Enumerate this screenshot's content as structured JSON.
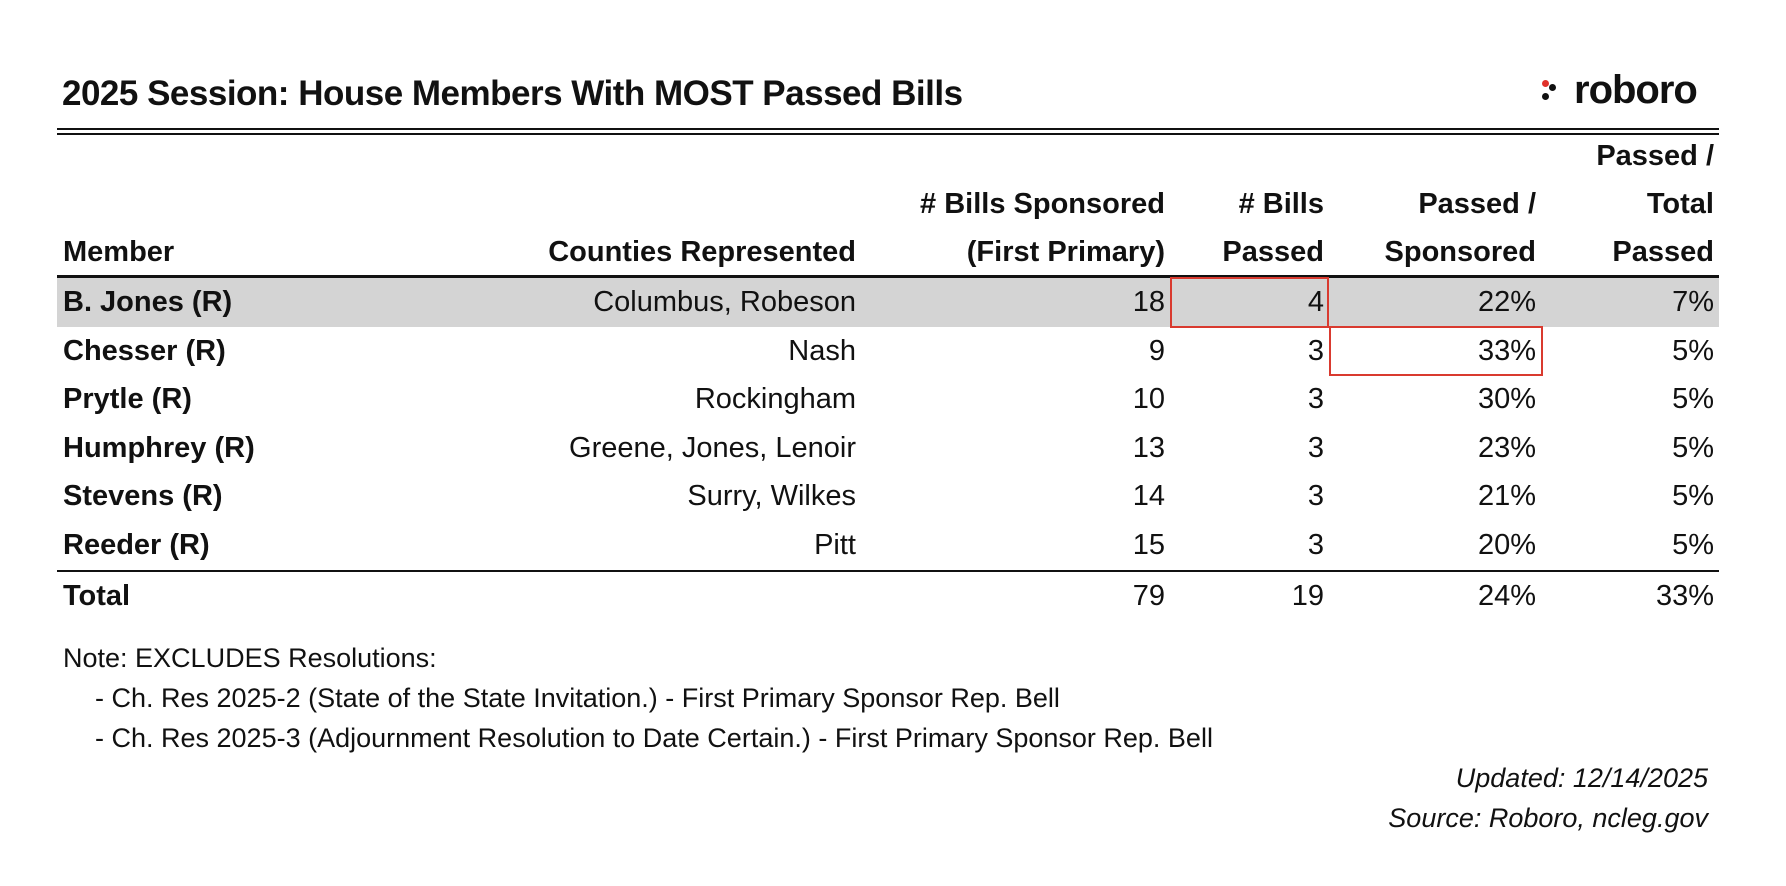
{
  "title": "2025 Session: House Members With MOST Passed Bills",
  "logo": {
    "text": "roboro",
    "icon": "dot-cluster-icon",
    "mark_colors": [
      "#e0312a",
      "#111111"
    ]
  },
  "colors": {
    "highlight_row": "#d4d4d4",
    "callout_box": "#d93a2f",
    "rule": "#111111"
  },
  "chart_data": {
    "type": "table",
    "title": "2025 Session: House Members With MOST Passed Bills",
    "columns": [
      {
        "key": "member",
        "lines": [
          "Member"
        ]
      },
      {
        "key": "counties",
        "lines": [
          "Counties Represented"
        ]
      },
      {
        "key": "sponsored",
        "lines": [
          "# Bills Sponsored",
          "(First Primary)"
        ]
      },
      {
        "key": "passed",
        "lines": [
          "# Bills",
          "Passed"
        ]
      },
      {
        "key": "passed_sponsored",
        "lines": [
          "Passed /",
          "Sponsored"
        ]
      },
      {
        "key": "passed_total",
        "lines": [
          "Passed /",
          "Total",
          "Passed"
        ]
      }
    ],
    "rows": [
      {
        "member": "B. Jones (R)",
        "counties": "Columbus, Robeson",
        "sponsored": "18",
        "passed": "4",
        "passed_sponsored": "22%",
        "passed_total": "7%"
      },
      {
        "member": "Chesser (R)",
        "counties": "Nash",
        "sponsored": "9",
        "passed": "3",
        "passed_sponsored": "33%",
        "passed_total": "5%"
      },
      {
        "member": "Prytle (R)",
        "counties": "Rockingham",
        "sponsored": "10",
        "passed": "3",
        "passed_sponsored": "30%",
        "passed_total": "5%"
      },
      {
        "member": "Humphrey (R)",
        "counties": "Greene, Jones, Lenoir",
        "sponsored": "13",
        "passed": "3",
        "passed_sponsored": "23%",
        "passed_total": "5%"
      },
      {
        "member": "Stevens (R)",
        "counties": "Surry, Wilkes",
        "sponsored": "14",
        "passed": "3",
        "passed_sponsored": "21%",
        "passed_total": "5%"
      },
      {
        "member": "Reeder (R)",
        "counties": "Pitt",
        "sponsored": "15",
        "passed": "3",
        "passed_sponsored": "20%",
        "passed_total": "5%"
      }
    ],
    "total": {
      "member": "Total",
      "counties": "",
      "sponsored": "79",
      "passed": "19",
      "passed_sponsored": "24%",
      "passed_total": "33%"
    },
    "highlighted_row": "B. Jones (R)",
    "callouts": [
      {
        "row": "B. Jones (R)",
        "column": "passed"
      },
      {
        "row": "Chesser (R)",
        "column": "passed_sponsored"
      }
    ]
  },
  "notes": {
    "heading": "Note: EXCLUDES Resolutions:",
    "items": [
      "- Ch. Res 2025-2 (State of the State Invitation.) - First Primary Sponsor Rep. Bell",
      "- Ch. Res 2025-3 (Adjournment Resolution to Date Certain.) - First Primary Sponsor Rep. Bell"
    ]
  },
  "footer": {
    "updated": "Updated: 12/14/2025",
    "source": "Source: Roboro, ncleg.gov"
  }
}
